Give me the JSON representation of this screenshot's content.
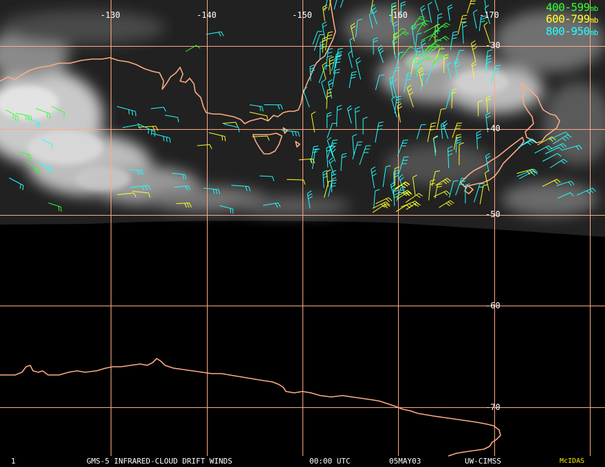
{
  "legend": [
    {
      "range": "400-599",
      "unit": "mb",
      "color": "#33ff33"
    },
    {
      "range": "600-799",
      "unit": "mb",
      "color": "#ffff22"
    },
    {
      "range": "800-950",
      "unit": "mb",
      "color": "#22ffff"
    }
  ],
  "grid": {
    "color": "#ffab85",
    "longitude_labels": [
      "-130",
      "-140",
      "-150",
      "-160",
      "-170"
    ],
    "latitude_labels": [
      "-30",
      "-40",
      "-50",
      "-60",
      "-70"
    ]
  },
  "footer": {
    "frame_number": "1",
    "product": "GMS-5 INFRARED-CLOUD DRIFT WINDS",
    "time": "00:00 UTC",
    "date": "05MAY03",
    "source": "UW-CIMSS",
    "brand": "McIDAS"
  },
  "colors": {
    "background": "#000000",
    "coastline": "#ffab85",
    "cloud": "#d8d8d8",
    "wind_high": "#33ff33",
    "wind_mid": "#ffff22",
    "wind_low": "#22ffff"
  }
}
